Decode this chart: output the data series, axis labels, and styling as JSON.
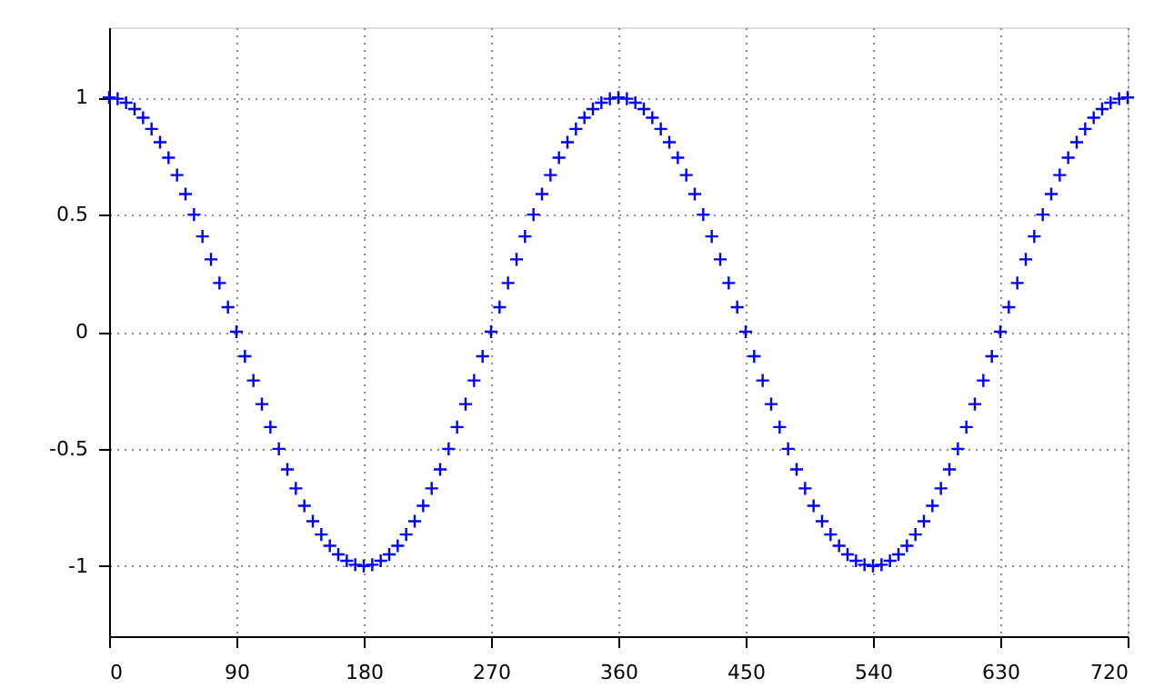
{
  "chart_data": {
    "type": "scatter",
    "x": [
      0,
      6,
      12,
      18,
      24,
      30,
      36,
      42,
      48,
      54,
      60,
      66,
      72,
      78,
      84,
      90,
      96,
      102,
      108,
      114,
      120,
      126,
      132,
      138,
      144,
      150,
      156,
      162,
      168,
      174,
      180,
      186,
      192,
      198,
      204,
      210,
      216,
      222,
      228,
      234,
      240,
      246,
      252,
      258,
      264,
      270,
      276,
      282,
      288,
      294,
      300,
      306,
      312,
      318,
      324,
      330,
      336,
      342,
      348,
      354,
      360,
      366,
      372,
      378,
      384,
      390,
      396,
      402,
      408,
      414,
      420,
      426,
      432,
      438,
      444,
      450,
      456,
      462,
      468,
      474,
      480,
      486,
      492,
      498,
      504,
      510,
      516,
      522,
      528,
      534,
      540,
      546,
      552,
      558,
      564,
      570,
      576,
      582,
      588,
      594,
      600,
      606,
      612,
      618,
      624,
      630,
      636,
      642,
      648,
      654,
      660,
      666,
      672,
      678,
      684,
      690,
      696,
      702,
      708,
      714,
      720
    ],
    "series": [
      {
        "color": "#0000ff",
        "values": [
          1,
          0.995,
          0.978,
          0.951,
          0.914,
          0.866,
          0.809,
          0.743,
          0.669,
          0.588,
          0.5,
          0.407,
          0.309,
          0.208,
          0.105,
          0,
          -0.105,
          -0.208,
          -0.309,
          -0.407,
          -0.5,
          -0.588,
          -0.669,
          -0.743,
          -0.809,
          -0.866,
          -0.914,
          -0.951,
          -0.978,
          -0.995,
          -1,
          -0.995,
          -0.978,
          -0.951,
          -0.914,
          -0.866,
          -0.809,
          -0.743,
          -0.669,
          -0.588,
          -0.5,
          -0.407,
          -0.309,
          -0.208,
          -0.105,
          0,
          0.105,
          0.208,
          0.309,
          0.407,
          0.5,
          0.588,
          0.669,
          0.743,
          0.809,
          0.866,
          0.914,
          0.951,
          0.978,
          0.995,
          1,
          0.995,
          0.978,
          0.951,
          0.914,
          0.866,
          0.809,
          0.743,
          0.669,
          0.588,
          0.5,
          0.407,
          0.309,
          0.208,
          0.105,
          0,
          -0.105,
          -0.208,
          -0.309,
          -0.407,
          -0.5,
          -0.588,
          -0.669,
          -0.743,
          -0.809,
          -0.866,
          -0.914,
          -0.951,
          -0.978,
          -0.995,
          -1,
          -0.995,
          -0.978,
          -0.951,
          -0.914,
          -0.866,
          -0.809,
          -0.743,
          -0.669,
          -0.588,
          -0.5,
          -0.407,
          -0.309,
          -0.208,
          -0.105,
          0,
          0.105,
          0.208,
          0.309,
          0.407,
          0.5,
          0.588,
          0.669,
          0.743,
          0.809,
          0.866,
          0.914,
          0.951,
          0.978,
          0.995,
          1
        ]
      }
    ],
    "xlim": [
      0,
      720
    ],
    "xticks": [
      0,
      90,
      180,
      270,
      360,
      450,
      540,
      630,
      720
    ],
    "ylim": [
      -1.3,
      1.3
    ],
    "yticks": [
      -1,
      -0.5,
      0,
      0.5,
      1
    ],
    "grid": true,
    "marker": "cross"
  }
}
